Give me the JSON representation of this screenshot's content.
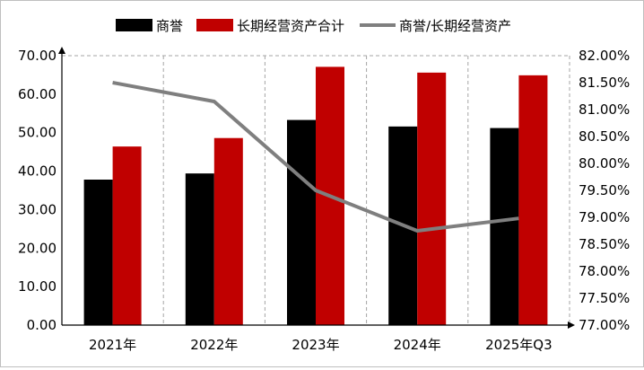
{
  "chart_data": {
    "type": "bar",
    "title": "",
    "categories": [
      "2021年",
      "2022年",
      "2023年",
      "2024年",
      "2025年Q3"
    ],
    "series": [
      {
        "name": "商誉",
        "type": "bar",
        "axis": "left",
        "color": "#000000",
        "values": [
          37.8,
          39.4,
          53.3,
          51.6,
          51.2
        ]
      },
      {
        "name": "长期经营资产合计",
        "type": "bar",
        "axis": "left",
        "color": "#c00000",
        "values": [
          46.4,
          48.6,
          67.1,
          65.6,
          64.9
        ]
      },
      {
        "name": "商誉/长期经营资产",
        "type": "line",
        "axis": "right",
        "color": "#7f7f7f",
        "values": [
          81.5,
          81.15,
          79.5,
          78.75,
          78.98
        ]
      }
    ],
    "left_axis": {
      "min": 0,
      "max": 70,
      "step": 10,
      "tick_labels": [
        "0.00",
        "10.00",
        "20.00",
        "30.00",
        "40.00",
        "50.00",
        "60.00",
        "70.00"
      ]
    },
    "right_axis": {
      "min": 77.0,
      "max": 82.0,
      "step": 0.5,
      "unit": "%",
      "tick_labels": [
        "77.00%",
        "77.50%",
        "78.00%",
        "78.50%",
        "79.00%",
        "79.50%",
        "80.00%",
        "80.50%",
        "81.00%",
        "81.50%",
        "82.00%"
      ]
    },
    "grid": "vertical-dashed",
    "legend_position": "top"
  }
}
